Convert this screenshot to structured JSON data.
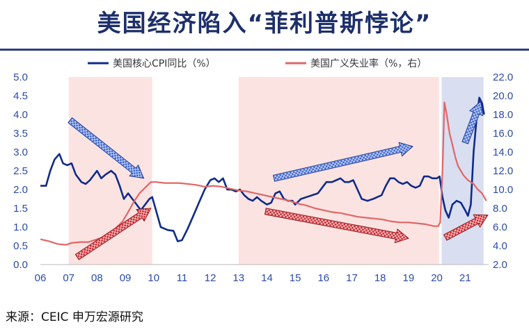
{
  "title": "美国经济陷入“菲利普斯悖论”",
  "source": "来源：CEIC 申万宏源研究",
  "chart_data": {
    "type": "line",
    "x_ticks": [
      "06",
      "07",
      "08",
      "09",
      "10",
      "11",
      "12",
      "13",
      "14",
      "15",
      "16",
      "17",
      "18",
      "19",
      "20",
      "21"
    ],
    "xlim": [
      2006,
      2021.83
    ],
    "ylim_left": [
      0,
      5
    ],
    "ylim_right": [
      2,
      22
    ],
    "y_ticks_left": [
      "0.0",
      "0.5",
      "1.0",
      "1.5",
      "2.0",
      "2.5",
      "3.0",
      "3.5",
      "4.0",
      "4.5",
      "5.0"
    ],
    "y_ticks_right": [
      "2.0",
      "4.0",
      "6.0",
      "8.0",
      "10.0",
      "12.0",
      "14.0",
      "16.0",
      "18.0",
      "20.0",
      "22.0"
    ],
    "legend": {
      "placement": "top",
      "items": [
        "美国核心CPI同比（%）",
        "美国广义失业率（%，右）"
      ]
    },
    "shaded_periods": [
      {
        "from": 2007.0,
        "to": 2009.95,
        "color": "#fbe3e1"
      },
      {
        "from": 2013.0,
        "to": 2020.08,
        "color": "#fbe3e1"
      },
      {
        "from": 2020.17,
        "to": 2021.65,
        "color": "#d9def0"
      }
    ],
    "series": [
      {
        "name": "美国核心CPI同比（%）",
        "axis": "left",
        "color": "#0f2a8a",
        "points": [
          [
            2006.0,
            2.1
          ],
          [
            2006.2,
            2.1
          ],
          [
            2006.35,
            2.5
          ],
          [
            2006.5,
            2.8
          ],
          [
            2006.67,
            2.95
          ],
          [
            2006.8,
            2.7
          ],
          [
            2006.95,
            2.65
          ],
          [
            2007.1,
            2.7
          ],
          [
            2007.25,
            2.4
          ],
          [
            2007.45,
            2.2
          ],
          [
            2007.6,
            2.15
          ],
          [
            2007.75,
            2.25
          ],
          [
            2007.9,
            2.4
          ],
          [
            2008.0,
            2.5
          ],
          [
            2008.15,
            2.3
          ],
          [
            2008.3,
            2.4
          ],
          [
            2008.5,
            2.5
          ],
          [
            2008.65,
            2.4
          ],
          [
            2008.8,
            2.1
          ],
          [
            2008.95,
            1.75
          ],
          [
            2009.1,
            1.9
          ],
          [
            2009.25,
            1.75
          ],
          [
            2009.4,
            1.6
          ],
          [
            2009.55,
            1.45
          ],
          [
            2009.7,
            1.6
          ],
          [
            2009.85,
            1.75
          ],
          [
            2009.95,
            1.8
          ],
          [
            2010.1,
            1.4
          ],
          [
            2010.25,
            1.0
          ],
          [
            2010.5,
            0.92
          ],
          [
            2010.7,
            0.9
          ],
          [
            2010.85,
            0.62
          ],
          [
            2011.0,
            0.65
          ],
          [
            2011.2,
            0.95
          ],
          [
            2011.4,
            1.3
          ],
          [
            2011.6,
            1.65
          ],
          [
            2011.8,
            2.0
          ],
          [
            2012.0,
            2.25
          ],
          [
            2012.15,
            2.3
          ],
          [
            2012.3,
            2.2
          ],
          [
            2012.45,
            2.3
          ],
          [
            2012.6,
            2.0
          ],
          [
            2012.75,
            2.0
          ],
          [
            2012.9,
            1.95
          ],
          [
            2013.05,
            2.0
          ],
          [
            2013.2,
            1.85
          ],
          [
            2013.35,
            1.75
          ],
          [
            2013.5,
            1.7
          ],
          [
            2013.65,
            1.8
          ],
          [
            2013.8,
            1.7
          ],
          [
            2014.0,
            1.6
          ],
          [
            2014.15,
            1.65
          ],
          [
            2014.3,
            1.9
          ],
          [
            2014.45,
            1.95
          ],
          [
            2014.6,
            1.75
          ],
          [
            2014.75,
            1.7
          ],
          [
            2014.9,
            1.7
          ],
          [
            2015.0,
            1.6
          ],
          [
            2015.2,
            1.75
          ],
          [
            2015.4,
            1.8
          ],
          [
            2015.6,
            1.85
          ],
          [
            2015.8,
            1.9
          ],
          [
            2015.95,
            2.05
          ],
          [
            2016.1,
            2.2
          ],
          [
            2016.3,
            2.2
          ],
          [
            2016.45,
            2.25
          ],
          [
            2016.6,
            2.3
          ],
          [
            2016.75,
            2.2
          ],
          [
            2016.9,
            2.2
          ],
          [
            2017.05,
            2.25
          ],
          [
            2017.2,
            2.0
          ],
          [
            2017.35,
            1.75
          ],
          [
            2017.55,
            1.7
          ],
          [
            2017.75,
            1.75
          ],
          [
            2017.9,
            1.8
          ],
          [
            2018.05,
            1.85
          ],
          [
            2018.2,
            2.1
          ],
          [
            2018.35,
            2.3
          ],
          [
            2018.5,
            2.3
          ],
          [
            2018.65,
            2.2
          ],
          [
            2018.8,
            2.15
          ],
          [
            2018.95,
            2.2
          ],
          [
            2019.1,
            2.1
          ],
          [
            2019.25,
            2.05
          ],
          [
            2019.4,
            2.1
          ],
          [
            2019.55,
            2.35
          ],
          [
            2019.7,
            2.35
          ],
          [
            2019.85,
            2.3
          ],
          [
            2020.0,
            2.3
          ],
          [
            2020.1,
            2.35
          ],
          [
            2020.2,
            1.8
          ],
          [
            2020.3,
            1.45
          ],
          [
            2020.42,
            1.25
          ],
          [
            2020.55,
            1.6
          ],
          [
            2020.7,
            1.7
          ],
          [
            2020.85,
            1.65
          ],
          [
            2021.0,
            1.45
          ],
          [
            2021.1,
            1.3
          ],
          [
            2021.2,
            1.6
          ],
          [
            2021.3,
            3.0
          ],
          [
            2021.4,
            3.85
          ],
          [
            2021.5,
            4.45
          ],
          [
            2021.6,
            4.3
          ],
          [
            2021.67,
            4.0
          ]
        ]
      },
      {
        "name": "美国广义失业率（%，右）",
        "axis": "right",
        "color": "#e06666",
        "points": [
          [
            2006.0,
            4.7
          ],
          [
            2006.3,
            4.5
          ],
          [
            2006.6,
            4.2
          ],
          [
            2006.9,
            4.1
          ],
          [
            2007.1,
            4.3
          ],
          [
            2007.4,
            4.4
          ],
          [
            2007.7,
            4.4
          ],
          [
            2008.0,
            4.7
          ],
          [
            2008.3,
            5.0
          ],
          [
            2008.6,
            5.7
          ],
          [
            2008.9,
            6.6
          ],
          [
            2009.1,
            7.6
          ],
          [
            2009.3,
            8.7
          ],
          [
            2009.5,
            9.6
          ],
          [
            2009.7,
            10.2
          ],
          [
            2009.9,
            10.8
          ],
          [
            2010.1,
            10.8
          ],
          [
            2010.4,
            10.7
          ],
          [
            2010.7,
            10.7
          ],
          [
            2010.9,
            10.7
          ],
          [
            2011.2,
            10.6
          ],
          [
            2011.5,
            10.5
          ],
          [
            2011.8,
            10.3
          ],
          [
            2012.1,
            10.4
          ],
          [
            2012.4,
            10.3
          ],
          [
            2012.7,
            10.1
          ],
          [
            2013.0,
            9.9
          ],
          [
            2013.3,
            9.8
          ],
          [
            2013.6,
            9.6
          ],
          [
            2013.9,
            9.4
          ],
          [
            2014.2,
            9.2
          ],
          [
            2014.5,
            9.0
          ],
          [
            2014.8,
            8.8
          ],
          [
            2015.1,
            8.5
          ],
          [
            2015.4,
            8.3
          ],
          [
            2015.7,
            8.0
          ],
          [
            2016.0,
            7.8
          ],
          [
            2016.3,
            7.6
          ],
          [
            2016.6,
            7.5
          ],
          [
            2016.9,
            7.3
          ],
          [
            2017.2,
            7.1
          ],
          [
            2017.5,
            7.0
          ],
          [
            2017.8,
            6.9
          ],
          [
            2018.1,
            6.8
          ],
          [
            2018.4,
            6.6
          ],
          [
            2018.7,
            6.5
          ],
          [
            2019.0,
            6.5
          ],
          [
            2019.3,
            6.4
          ],
          [
            2019.6,
            6.3
          ],
          [
            2019.9,
            6.1
          ],
          [
            2020.05,
            6.1
          ],
          [
            2020.12,
            6.5
          ],
          [
            2020.2,
            12.0
          ],
          [
            2020.27,
            19.3
          ],
          [
            2020.35,
            18.0
          ],
          [
            2020.45,
            16.0
          ],
          [
            2020.55,
            14.8
          ],
          [
            2020.65,
            13.5
          ],
          [
            2020.75,
            12.5
          ],
          [
            2020.85,
            12.0
          ],
          [
            2020.95,
            11.5
          ],
          [
            2021.1,
            11.0
          ],
          [
            2021.3,
            10.6
          ],
          [
            2021.45,
            10.0
          ],
          [
            2021.6,
            9.6
          ],
          [
            2021.75,
            8.8
          ]
        ]
      }
    ],
    "annotations": [
      {
        "shape": "arrow",
        "color": "blue",
        "from": [
          2007.05,
          3.85
        ],
        "to": [
          2009.65,
          2.3
        ]
      },
      {
        "shape": "arrow",
        "color": "red",
        "from": [
          2007.3,
          0.2
        ],
        "to": [
          2009.9,
          1.5
        ]
      },
      {
        "shape": "arrow",
        "color": "blue",
        "from": [
          2014.25,
          2.3
        ],
        "to": [
          2019.15,
          3.15
        ]
      },
      {
        "shape": "arrow",
        "color": "red",
        "from": [
          2013.95,
          1.42
        ],
        "to": [
          2019.0,
          0.7
        ]
      },
      {
        "shape": "arrow",
        "color": "blue",
        "from": [
          2021.0,
          3.25
        ],
        "to": [
          2021.55,
          4.35
        ]
      },
      {
        "shape": "arrow",
        "color": "red",
        "from": [
          2020.3,
          0.72
        ],
        "to": [
          2021.8,
          1.32
        ]
      }
    ]
  }
}
